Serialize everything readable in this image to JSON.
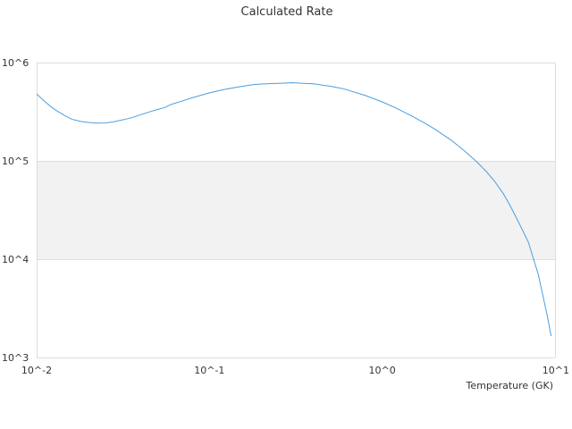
{
  "chart_data": {
    "type": "line",
    "title": "Calculated Rate",
    "xlabel": "Temperature (GK)",
    "ylabel": "",
    "xscale": "log",
    "yscale": "log",
    "xlim": [
      0.01,
      10
    ],
    "ylim": [
      1000,
      1000000
    ],
    "x_ticks": [
      {
        "value": 0.01,
        "label": "10^-2"
      },
      {
        "value": 0.1,
        "label": "10^-1"
      },
      {
        "value": 1,
        "label": "10^0"
      },
      {
        "value": 10,
        "label": "10^1"
      }
    ],
    "y_ticks": [
      {
        "value": 1000,
        "label": "10^3"
      },
      {
        "value": 10000,
        "label": "10^4"
      },
      {
        "value": 100000,
        "label": "10^5"
      },
      {
        "value": 1000000,
        "label": "10^6"
      }
    ],
    "shaded_band": [
      10000,
      100000
    ],
    "grid": true,
    "legend": "none",
    "series": [
      {
        "color": "#4a9ee0",
        "x": [
          0.01,
          0.011,
          0.012,
          0.013,
          0.0145,
          0.016,
          0.018,
          0.02,
          0.022,
          0.025,
          0.028,
          0.032,
          0.036,
          0.04,
          0.045,
          0.05,
          0.055,
          0.06,
          0.07,
          0.08,
          0.1,
          0.12,
          0.15,
          0.18,
          0.2,
          0.25,
          0.3,
          0.35,
          0.4,
          0.5,
          0.6,
          0.8,
          1.0,
          1.2,
          1.5,
          1.8,
          2.0,
          2.5,
          3.0,
          3.5,
          4.0,
          4.5,
          5.0,
          5.5,
          6.0,
          7.0,
          8.0,
          9.0,
          9.5
        ],
        "values": [
          480000,
          410000,
          360000,
          325000,
          290000,
          265000,
          252000,
          246000,
          242000,
          243000,
          250000,
          263000,
          277000,
          295000,
          315000,
          333000,
          348000,
          375000,
          408000,
          440000,
          492000,
          530000,
          568000,
          597000,
          605000,
          615000,
          622000,
          614000,
          608000,
          574000,
          540000,
          462000,
          398000,
          345000,
          283000,
          237000,
          212000,
          163000,
          126000,
          99000,
          78000,
          61000,
          47000,
          35000,
          26000,
          15000,
          7000,
          2700,
          1650
        ]
      }
    ]
  }
}
